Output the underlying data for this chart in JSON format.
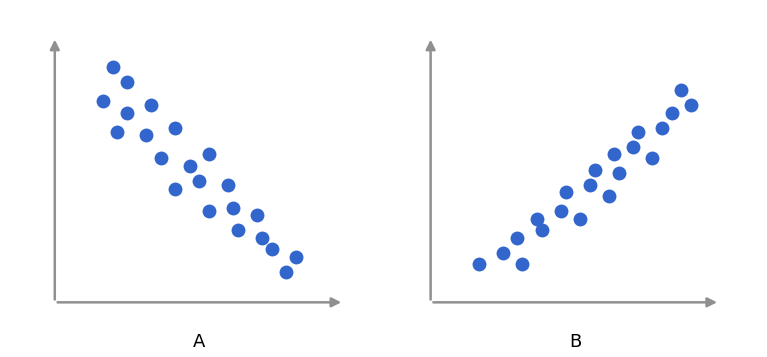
{
  "dot_color": "#3366CC",
  "dot_size": 100,
  "dot_alpha": 1.0,
  "axis_color": "#909090",
  "background_color": "#ffffff",
  "label_A": "A",
  "label_B": "B",
  "label_fontsize": 13,
  "scatter_A_x": [
    1.2,
    1.5,
    1.0,
    1.5,
    2.0,
    1.3,
    1.9,
    2.5,
    2.2,
    2.8,
    3.2,
    2.5,
    3.0,
    3.6,
    3.2,
    3.7,
    4.2,
    3.8,
    4.3,
    4.5,
    5.0,
    4.8
  ],
  "scatter_A_y": [
    6.2,
    5.8,
    5.3,
    5.0,
    5.2,
    4.5,
    4.4,
    4.6,
    3.8,
    3.6,
    3.9,
    3.0,
    3.2,
    3.1,
    2.4,
    2.5,
    2.3,
    1.9,
    1.7,
    1.4,
    1.2,
    0.8
  ],
  "scatter_B_x": [
    1.0,
    1.5,
    1.9,
    1.8,
    2.3,
    2.2,
    2.7,
    3.1,
    2.8,
    3.3,
    3.7,
    3.4,
    3.9,
    3.8,
    4.2,
    4.6,
    4.3,
    4.8,
    5.0,
    5.4,
    5.2
  ],
  "scatter_B_y": [
    1.0,
    1.3,
    1.0,
    1.7,
    1.9,
    2.2,
    2.4,
    2.2,
    2.9,
    3.1,
    2.8,
    3.5,
    3.4,
    3.9,
    4.1,
    3.8,
    4.5,
    4.6,
    5.0,
    5.2,
    5.6
  ]
}
